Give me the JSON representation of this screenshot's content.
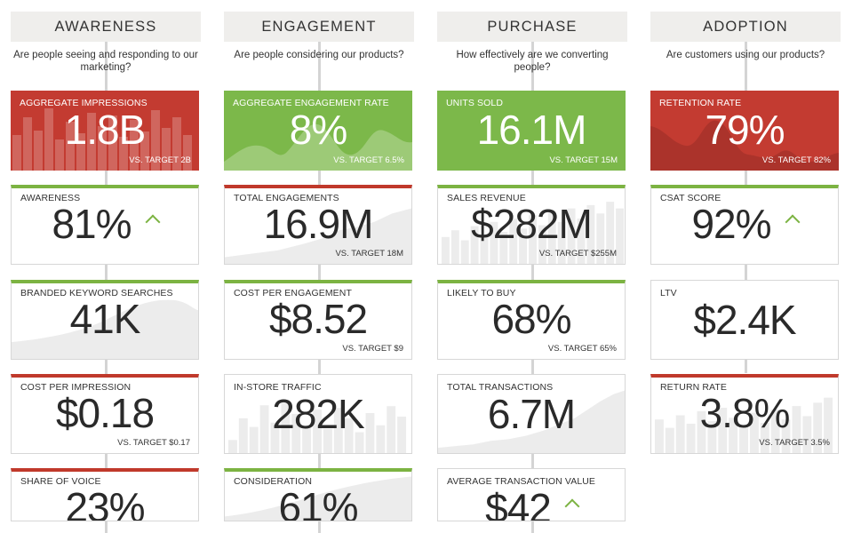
{
  "columns": [
    {
      "title": "AWARENESS",
      "question": "Are people seeing and responding to our marketing?",
      "cards": [
        {
          "label": "AGGREGATE IMPRESSIONS",
          "value": "1.8B",
          "target": "VS. TARGET 2B"
        },
        {
          "label": "AWARENESS",
          "value": "81%"
        },
        {
          "label": "BRANDED KEYWORD SEARCHES",
          "value": "41K"
        },
        {
          "label": "COST PER IMPRESSION",
          "value": "$0.18",
          "target": "VS. TARGET $0.17"
        },
        {
          "label": "SHARE OF VOICE",
          "value": "23%"
        }
      ]
    },
    {
      "title": "ENGAGEMENT",
      "question": "Are people considering our products?",
      "cards": [
        {
          "label": "AGGREGATE ENGAGEMENT RATE",
          "value": "8%",
          "target": "VS. TARGET 6.5%"
        },
        {
          "label": "TOTAL ENGAGEMENTS",
          "value": "16.9M",
          "target": "VS. TARGET 18M"
        },
        {
          "label": "COST PER ENGAGEMENT",
          "value": "$8.52",
          "target": "VS. TARGET $9"
        },
        {
          "label": "IN-STORE TRAFFIC",
          "value": "282K"
        },
        {
          "label": "CONSIDERATION",
          "value": "61%"
        }
      ]
    },
    {
      "title": "PURCHASE",
      "question": "How effectively are we converting people?",
      "cards": [
        {
          "label": "UNITS SOLD",
          "value": "16.1M",
          "target": "VS. TARGET 15M"
        },
        {
          "label": "SALES REVENUE",
          "value": "$282M",
          "target": "VS. TARGET $255M"
        },
        {
          "label": "LIKELY TO BUY",
          "value": "68%",
          "target": "VS. TARGET 65%"
        },
        {
          "label": "TOTAL TRANSACTIONS",
          "value": "6.7M"
        },
        {
          "label": "AVERAGE TRANSACTION VALUE",
          "value": "$42"
        }
      ]
    },
    {
      "title": "ADOPTION",
      "question": "Are customers using our products?",
      "cards": [
        {
          "label": "RETENTION RATE",
          "value": "79%",
          "target": "VS. TARGET 82%"
        },
        {
          "label": "CSAT SCORE",
          "value": "92%"
        },
        {
          "label": "LTV",
          "value": "$2.4K"
        },
        {
          "label": "RETURN RATE",
          "value": "3.8%",
          "target": "VS. TARGET 3.5%"
        }
      ]
    }
  ],
  "colors": {
    "red": "#c33b31",
    "green": "#7cb84a",
    "header_bg": "#efeeec"
  }
}
